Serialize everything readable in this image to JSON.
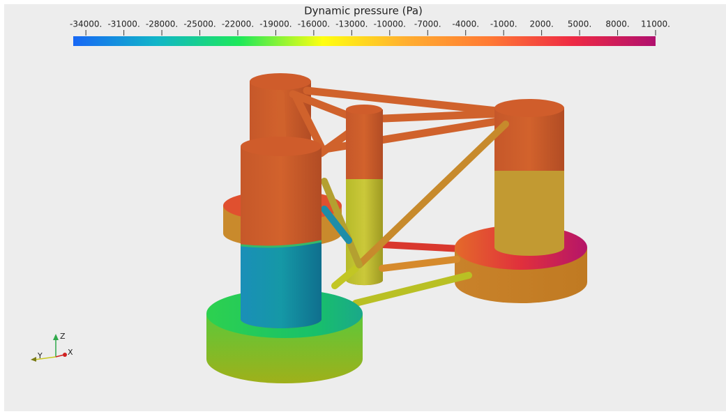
{
  "colorbar": {
    "title": "Dynamic pressure (Pa)",
    "lim": [
      -35000,
      11000
    ],
    "ticks": [
      {
        "value": -34000,
        "label": "-34000."
      },
      {
        "value": -31000,
        "label": "-31000."
      },
      {
        "value": -28000,
        "label": "-28000."
      },
      {
        "value": -25000,
        "label": "-25000."
      },
      {
        "value": -22000,
        "label": "-22000."
      },
      {
        "value": -19000,
        "label": "-19000."
      },
      {
        "value": -16000,
        "label": "-16000."
      },
      {
        "value": -13000,
        "label": "-13000."
      },
      {
        "value": -10000,
        "label": "-10000."
      },
      {
        "value": -7000,
        "label": "-7000."
      },
      {
        "value": -4000,
        "label": "-4000."
      },
      {
        "value": -1000,
        "label": "-1000."
      },
      {
        "value": 2000,
        "label": "2000."
      },
      {
        "value": 5000,
        "label": "5000."
      },
      {
        "value": 8000,
        "label": "8000."
      },
      {
        "value": 11000,
        "label": "11000."
      }
    ],
    "colors": [
      "#1767f5",
      "#11b5c8",
      "#1ee85a",
      "#ffff10",
      "#ffae30",
      "#ff7a34",
      "#ee2a44",
      "#b0106e"
    ]
  },
  "orientation_axes": {
    "x": "X",
    "y": "Y",
    "z": "Z"
  }
}
